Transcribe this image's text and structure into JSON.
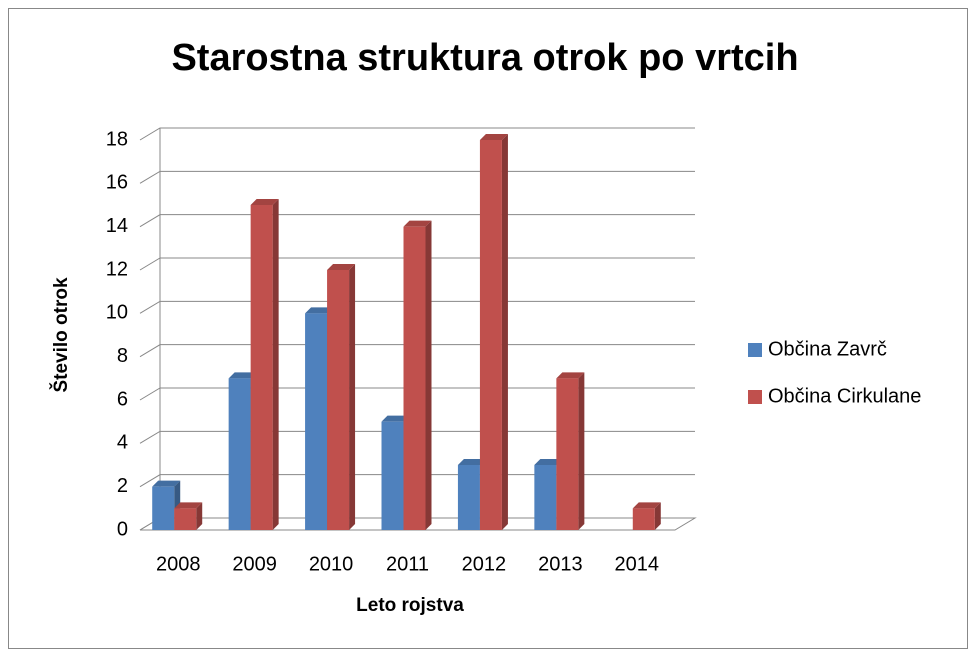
{
  "chart_data": {
    "type": "bar3d",
    "title": "Starostna struktura otrok po vrtcih",
    "xlabel": "Leto rojstva",
    "ylabel": "Število otrok",
    "categories": [
      "2008",
      "2009",
      "2010",
      "2011",
      "2012",
      "2013",
      "2014"
    ],
    "series": [
      {
        "name": "Občina Zavrč",
        "color": "#4f81bd",
        "values": [
          2,
          7,
          10,
          5,
          3,
          3,
          0
        ]
      },
      {
        "name": "Občina Cirkulane",
        "color": "#c0504d",
        "values": [
          1,
          15,
          12,
          14,
          18,
          7,
          1
        ]
      }
    ],
    "ylim": [
      0,
      18
    ],
    "yticks": [
      0,
      2,
      4,
      6,
      8,
      10,
      12,
      14,
      16,
      18
    ],
    "grid": true,
    "legend": "right"
  }
}
